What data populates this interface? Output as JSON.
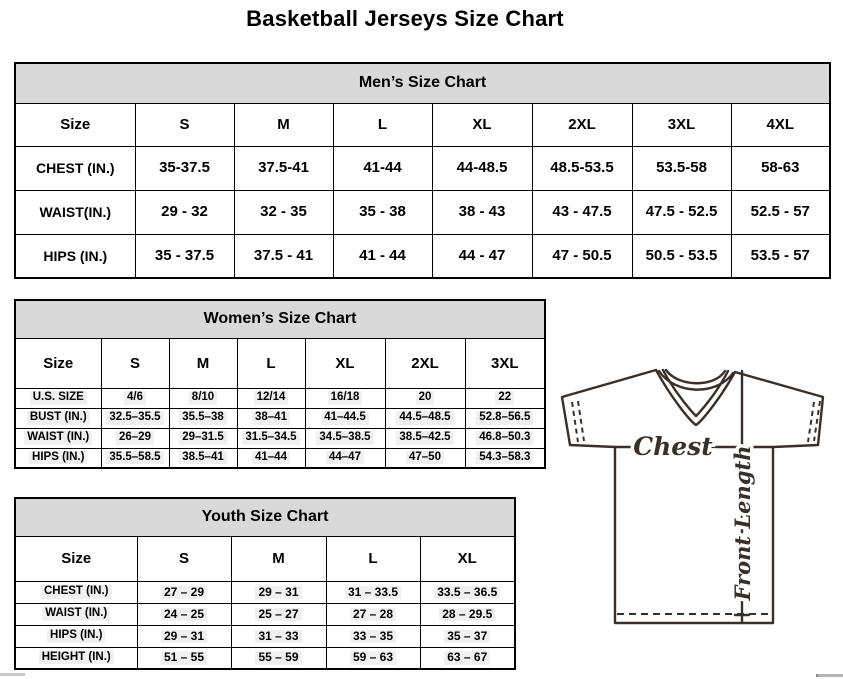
{
  "page": {
    "title": "Basketball Jerseys Size Chart"
  },
  "mens": {
    "title": "Men’s Size Chart",
    "columns": [
      "Size",
      "S",
      "M",
      "L",
      "XL",
      "2XL",
      "3XL",
      "4XL"
    ],
    "rows": [
      {
        "label": "CHEST (IN.)",
        "values": [
          "35-37.5",
          "37.5-41",
          "41-44",
          "44-48.5",
          "48.5-53.5",
          "53.5-58",
          "58-63"
        ]
      },
      {
        "label": "WAIST(IN.)",
        "values": [
          "29 - 32",
          "32 - 35",
          "35 - 38",
          "38 - 43",
          "43 - 47.5",
          "47.5 - 52.5",
          "52.5 - 57"
        ]
      },
      {
        "label": "HIPS (IN.)",
        "values": [
          "35 - 37.5",
          "37.5 - 41",
          "41 - 44",
          "44 - 47",
          "47 - 50.5",
          "50.5 - 53.5",
          "53.5 - 57"
        ]
      }
    ]
  },
  "womens": {
    "title": "Women’s Size Chart",
    "columns": [
      "Size",
      "S",
      "M",
      "L",
      "XL",
      "2XL",
      "3XL"
    ],
    "rows": [
      {
        "label": "U.S. SIZE",
        "values": [
          "4/6",
          "8/10",
          "12/14",
          "16/18",
          "20",
          "22"
        ]
      },
      {
        "label": "BUST (IN.)",
        "values": [
          "32.5–35.5",
          "35.5–38",
          "38–41",
          "41–44.5",
          "44.5–48.5",
          "52.8–56.5"
        ]
      },
      {
        "label": "WAIST (IN.)",
        "values": [
          "26–29",
          "29–31.5",
          "31.5–34.5",
          "34.5–38.5",
          "38.5–42.5",
          "46.8–50.3"
        ]
      },
      {
        "label": "HIPS (IN.)",
        "values": [
          "35.5–58.5",
          "38.5–41",
          "41–44",
          "44–47",
          "47–50",
          "54.3–58.3"
        ]
      }
    ]
  },
  "youth": {
    "title": "Youth Size Chart",
    "columns": [
      "Size",
      "S",
      "M",
      "L",
      "XL"
    ],
    "rows": [
      {
        "label": "CHEST (IN.)",
        "values": [
          "27 – 29",
          "29 – 31",
          "31 – 33.5",
          "33.5 – 36.5"
        ]
      },
      {
        "label": "WAIST (IN.)",
        "values": [
          "24 – 25",
          "25 – 27",
          "27 – 28",
          "28 – 29.5"
        ]
      },
      {
        "label": "HIPS (IN.)",
        "values": [
          "29 – 31",
          "31 – 33",
          "33 – 35",
          "35 – 37"
        ]
      },
      {
        "label": "HEIGHT (IN.)",
        "values": [
          "51 – 55",
          "55 – 59",
          "59 – 63",
          "63 – 67"
        ]
      }
    ]
  },
  "diagram": {
    "chest_label": "Chest",
    "front_length_label": "Front Length"
  },
  "colors": {
    "table_header_fill": "#d9d9d9",
    "table_border": "#000000",
    "diagram_stroke": "#3a3028"
  }
}
